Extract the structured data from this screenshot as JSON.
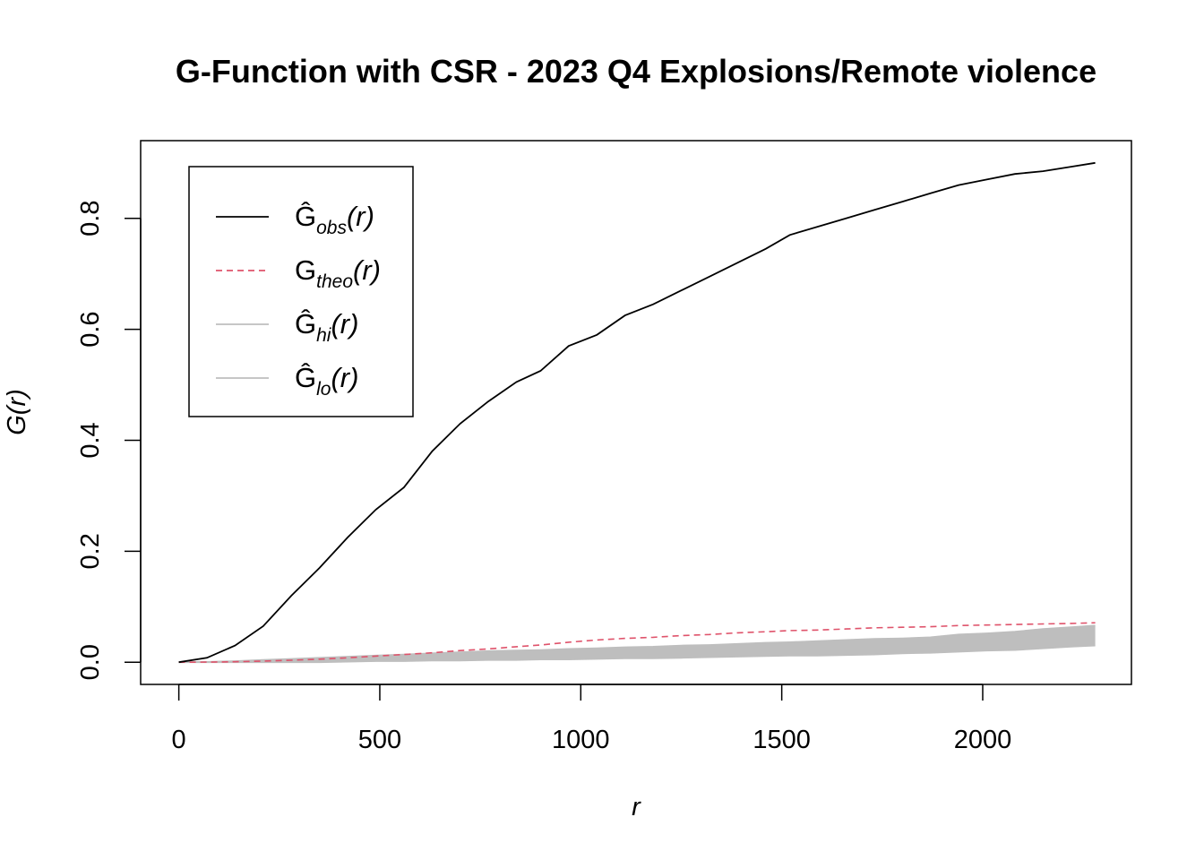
{
  "chart_data": {
    "type": "line",
    "title": "G-Function with CSR - 2023 Q4 Explosions/Remote violence",
    "xlabel": "r",
    "ylabel": "G(r)",
    "xlim": [
      -95,
      2370
    ],
    "ylim": [
      -0.04,
      0.94
    ],
    "xticks": [
      0,
      500,
      1000,
      1500,
      2000
    ],
    "yticks": [
      0.0,
      0.2,
      0.4,
      0.6,
      0.8
    ],
    "xtick_labels": [
      "0",
      "500",
      "1000",
      "1500",
      "2000"
    ],
    "ytick_labels": [
      "0.0",
      "0.2",
      "0.4",
      "0.6",
      "0.8"
    ],
    "grid": false,
    "legend_position": "top-left",
    "x": [
      0,
      70,
      140,
      210,
      280,
      350,
      420,
      490,
      560,
      630,
      700,
      770,
      840,
      900,
      970,
      1040,
      1110,
      1180,
      1250,
      1320,
      1390,
      1460,
      1520,
      1590,
      1660,
      1730,
      1800,
      1870,
      1940,
      2010,
      2080,
      2150,
      2220,
      2280
    ],
    "series": [
      {
        "name": "obs",
        "legend_main": "Ĝ",
        "legend_sub": "obs",
        "legend_tail": "(r)",
        "color": "#000000",
        "dash": "solid",
        "values": [
          0.0,
          0.008,
          0.03,
          0.065,
          0.12,
          0.17,
          0.225,
          0.275,
          0.315,
          0.38,
          0.43,
          0.47,
          0.505,
          0.525,
          0.57,
          0.59,
          0.625,
          0.645,
          0.67,
          0.695,
          0.72,
          0.745,
          0.77,
          0.785,
          0.8,
          0.815,
          0.83,
          0.845,
          0.86,
          0.87,
          0.88,
          0.885,
          0.893,
          0.9
        ]
      },
      {
        "name": "theo",
        "legend_main": "G",
        "legend_sub": "theo",
        "legend_tail": "(r)",
        "color": "#DF536B",
        "dash": "dashed",
        "values": [
          0.0,
          0.0002,
          0.0009,
          0.002,
          0.0036,
          0.0055,
          0.008,
          0.011,
          0.014,
          0.017,
          0.021,
          0.024,
          0.028,
          0.031,
          0.036,
          0.04,
          0.043,
          0.045,
          0.048,
          0.05,
          0.053,
          0.055,
          0.057,
          0.058,
          0.06,
          0.062,
          0.063,
          0.064,
          0.066,
          0.067,
          0.068,
          0.069,
          0.07,
          0.071
        ]
      },
      {
        "name": "hi",
        "legend_main": "Ĝ",
        "legend_sub": "hi",
        "legend_tail": "(r)",
        "color": "#BEBEBE",
        "dash": "solid",
        "values": [
          0.0,
          0.0006,
          0.002,
          0.004,
          0.006,
          0.008,
          0.01,
          0.012,
          0.014,
          0.016,
          0.018,
          0.02,
          0.021,
          0.022,
          0.024,
          0.025,
          0.027,
          0.028,
          0.03,
          0.031,
          0.033,
          0.035,
          0.036,
          0.038,
          0.04,
          0.042,
          0.043,
          0.045,
          0.05,
          0.052,
          0.055,
          0.06,
          0.063,
          0.066
        ]
      },
      {
        "name": "lo",
        "legend_main": "Ĝ",
        "legend_sub": "lo",
        "legend_tail": "(r)",
        "color": "#BEBEBE",
        "dash": "solid",
        "values": [
          0.0,
          0.0,
          0.0,
          0.0,
          0.0,
          0.0,
          0.001,
          0.002,
          0.002,
          0.003,
          0.003,
          0.004,
          0.004,
          0.005,
          0.005,
          0.006,
          0.007,
          0.007,
          0.008,
          0.009,
          0.01,
          0.011,
          0.012,
          0.012,
          0.013,
          0.014,
          0.016,
          0.017,
          0.019,
          0.021,
          0.022,
          0.025,
          0.028,
          0.03
        ]
      }
    ]
  }
}
